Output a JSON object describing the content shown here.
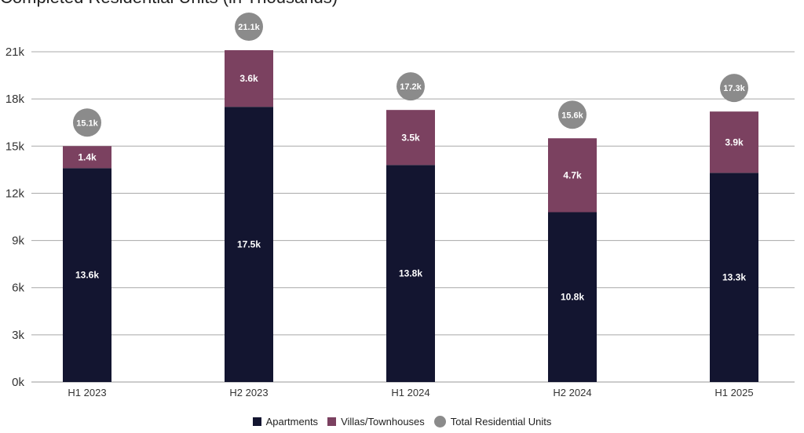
{
  "chart_data": {
    "type": "bar",
    "stacked": true,
    "title": "Completed Residential Units (in Thousands)",
    "categories": [
      "H1 2023",
      "H2 2023",
      "H1 2024",
      "H2 2024",
      "H1 2025"
    ],
    "series": [
      {
        "name": "Apartments",
        "color": "#131530",
        "values": [
          13.6,
          17.5,
          13.8,
          10.8,
          13.3
        ],
        "labels": [
          "13.6k",
          "17.5k",
          "13.8k",
          "10.8k",
          "13.3k"
        ]
      },
      {
        "name": "Villas/Townhouses",
        "color": "#7b4160",
        "values": [
          1.4,
          3.6,
          3.5,
          4.7,
          3.9
        ],
        "labels": [
          "1.4k",
          "3.6k",
          "3.5k",
          "4.7k",
          "3.9k"
        ]
      }
    ],
    "totals": {
      "name": "Total Residential Units",
      "color": "#8b8b8b",
      "values": [
        15.1,
        21.1,
        17.2,
        15.6,
        17.3
      ],
      "labels": [
        "15.1k",
        "21.1k",
        "17.2k",
        "15.6k",
        "17.3k"
      ]
    },
    "yticks": [
      0,
      3,
      6,
      9,
      12,
      15,
      18,
      21
    ],
    "ytick_labels": [
      "0k",
      "3k",
      "6k",
      "9k",
      "12k",
      "15k",
      "18k",
      "21k"
    ],
    "ylim": [
      0,
      21
    ],
    "grid": true,
    "legend": "bottom-center"
  }
}
